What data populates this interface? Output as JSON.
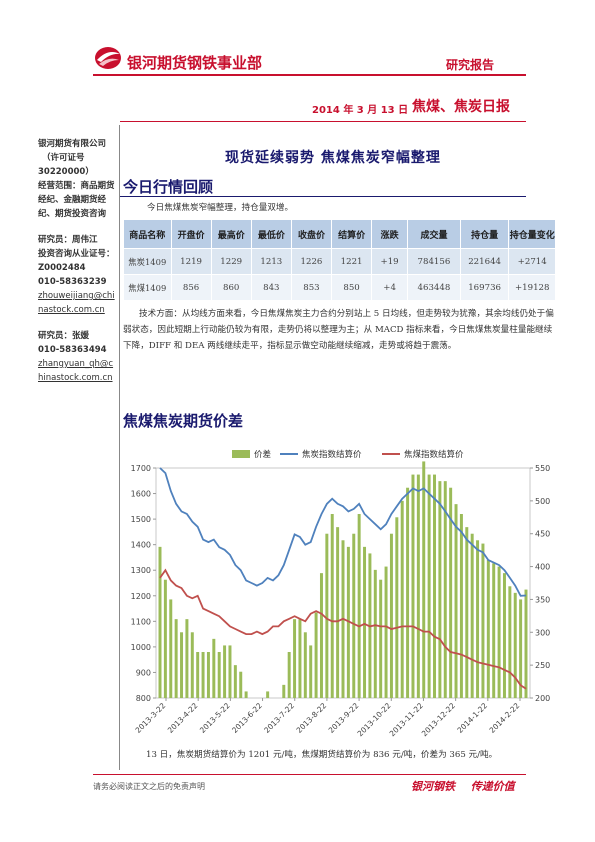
{
  "header": {
    "company_title": "银河期货钢铁事业部",
    "report_type": "研究报告",
    "date": "2014 年 3 月 13 日",
    "report_name": "焦煤、焦炭日报"
  },
  "sidebar": {
    "company": "银河期货有限公司",
    "license": "（许可证号",
    "license_no": "30220000）",
    "scope": "经营范围：商品期货经纪、金融期货经纪、期货投资咨询",
    "analyst1_label": "研究员：周伟江",
    "analyst1_cert": "投资咨询从业证号：",
    "analyst1_cert_no": "Z0002484",
    "analyst1_phone": "010-58363239",
    "analyst1_email": "zhouweijiang@chinastock.com.cn",
    "analyst2_label": "研究员：张媛",
    "analyst2_phone": "010-58363494",
    "analyst2_email": "zhangyuan_qh@chinastock.com.cn"
  },
  "main_title": "现货延续弱势 焦煤焦炭窄幅整理",
  "section1": {
    "title": "今日行情回顾",
    "intro": "今日焦煤焦炭窄幅整理，持仓量双增。"
  },
  "table": {
    "headers": [
      "商品名称",
      "开盘价",
      "最高价",
      "最低价",
      "收盘价",
      "结算价",
      "涨跌",
      "成交量",
      "持仓量",
      "持仓量变化"
    ],
    "rows": [
      [
        "焦炭1409",
        "1219",
        "1229",
        "1213",
        "1226",
        "1221",
        "+19",
        "784156",
        "221644",
        "+2714"
      ],
      [
        "焦煤1409",
        "856",
        "860",
        "843",
        "853",
        "850",
        "+4",
        "463448",
        "169736",
        "+19128"
      ]
    ]
  },
  "analysis": "技术方面：从均线方面来看，今日焦煤焦炭主力合约分别站上 5 日均线，但走势较为犹豫，其余均线仍处于偏弱状态，因此短期上行动能仍较为有限，走势仍将以整理为主；从 MACD 指标来看，今日焦煤焦炭量柱量能继续下降，DIFF 和 DEA 两线继续走平，指标显示做空动能继续缩减，走势或将趋于震荡。",
  "section2": {
    "title": "焦煤焦炭期货价差"
  },
  "caption": "13 日，焦炭期货结算价为 1201 元/吨，焦煤期货结算价为 836 元/吨，价差为 365 元/吨。",
  "footer": {
    "disclaimer": "请务必阅读正文之后的免责声明",
    "slogan_brand": "银河钢铁",
    "slogan_text": "传递价值"
  },
  "colors": {
    "brand_red": "#c8102e",
    "navy": "#1a1a6e",
    "bar_green": "#9bbb59",
    "line_blue": "#4f81bd",
    "line_red": "#c0504d"
  },
  "chart_data": {
    "type": "bar+line",
    "legend": [
      "价差",
      "焦炭指数结算价",
      "焦煤指数结算价"
    ],
    "legend_position": "top",
    "y_left": {
      "min": 800,
      "max": 1700,
      "ticks": [
        800,
        900,
        1000,
        1100,
        1200,
        1300,
        1400,
        1500,
        1600,
        1700
      ]
    },
    "y_right": {
      "min": 200,
      "max": 550,
      "ticks": [
        200,
        250,
        300,
        350,
        400,
        450,
        500,
        550
      ]
    },
    "x_labels": [
      "2013-3-22",
      "2013-4-22",
      "2013-5-22",
      "2013-6-22",
      "2013-7-22",
      "2013-8-22",
      "2013-9-22",
      "2013-10-22",
      "2013-11-22",
      "2013-12-22",
      "2014-1-22",
      "2014-2-22"
    ],
    "grid": false,
    "coke": [
      1700,
      1680,
      1610,
      1560,
      1530,
      1520,
      1490,
      1470,
      1420,
      1410,
      1420,
      1390,
      1380,
      1360,
      1320,
      1300,
      1260,
      1250,
      1240,
      1250,
      1270,
      1260,
      1280,
      1320,
      1380,
      1440,
      1430,
      1400,
      1410,
      1470,
      1520,
      1560,
      1580,
      1560,
      1550,
      1530,
      1540,
      1560,
      1520,
      1500,
      1480,
      1460,
      1480,
      1520,
      1550,
      1580,
      1600,
      1620,
      1610,
      1620,
      1600,
      1580,
      1560,
      1530,
      1500,
      1470,
      1450,
      1420,
      1400,
      1380,
      1370,
      1340,
      1330,
      1320,
      1300,
      1270,
      1240,
      1200,
      1201
    ],
    "coal": [
      1270,
      1300,
      1260,
      1240,
      1230,
      1200,
      1190,
      1200,
      1150,
      1140,
      1130,
      1120,
      1100,
      1080,
      1070,
      1060,
      1050,
      1050,
      1060,
      1050,
      1060,
      1080,
      1080,
      1100,
      1110,
      1120,
      1110,
      1100,
      1130,
      1140,
      1130,
      1110,
      1100,
      1100,
      1110,
      1100,
      1090,
      1080,
      1090,
      1080,
      1085,
      1080,
      1080,
      1070,
      1075,
      1080,
      1080,
      1080,
      1070,
      1060,
      1060,
      1040,
      1030,
      1000,
      980,
      975,
      970,
      960,
      950,
      940,
      935,
      930,
      925,
      920,
      910,
      900,
      880,
      850,
      836
    ],
    "spread": [
      430,
      380,
      350,
      320,
      300,
      320,
      300,
      270,
      270,
      270,
      290,
      270,
      280,
      280,
      250,
      240,
      210,
      200,
      180,
      200,
      210,
      180,
      200,
      220,
      270,
      320,
      320,
      300,
      280,
      330,
      390,
      450,
      480,
      460,
      440,
      430,
      450,
      480,
      430,
      420,
      395,
      380,
      400,
      450,
      475,
      500,
      520,
      540,
      540,
      560,
      540,
      540,
      530,
      530,
      520,
      495,
      480,
      460,
      450,
      440,
      435,
      410,
      405,
      400,
      390,
      370,
      360,
      350,
      365
    ]
  }
}
